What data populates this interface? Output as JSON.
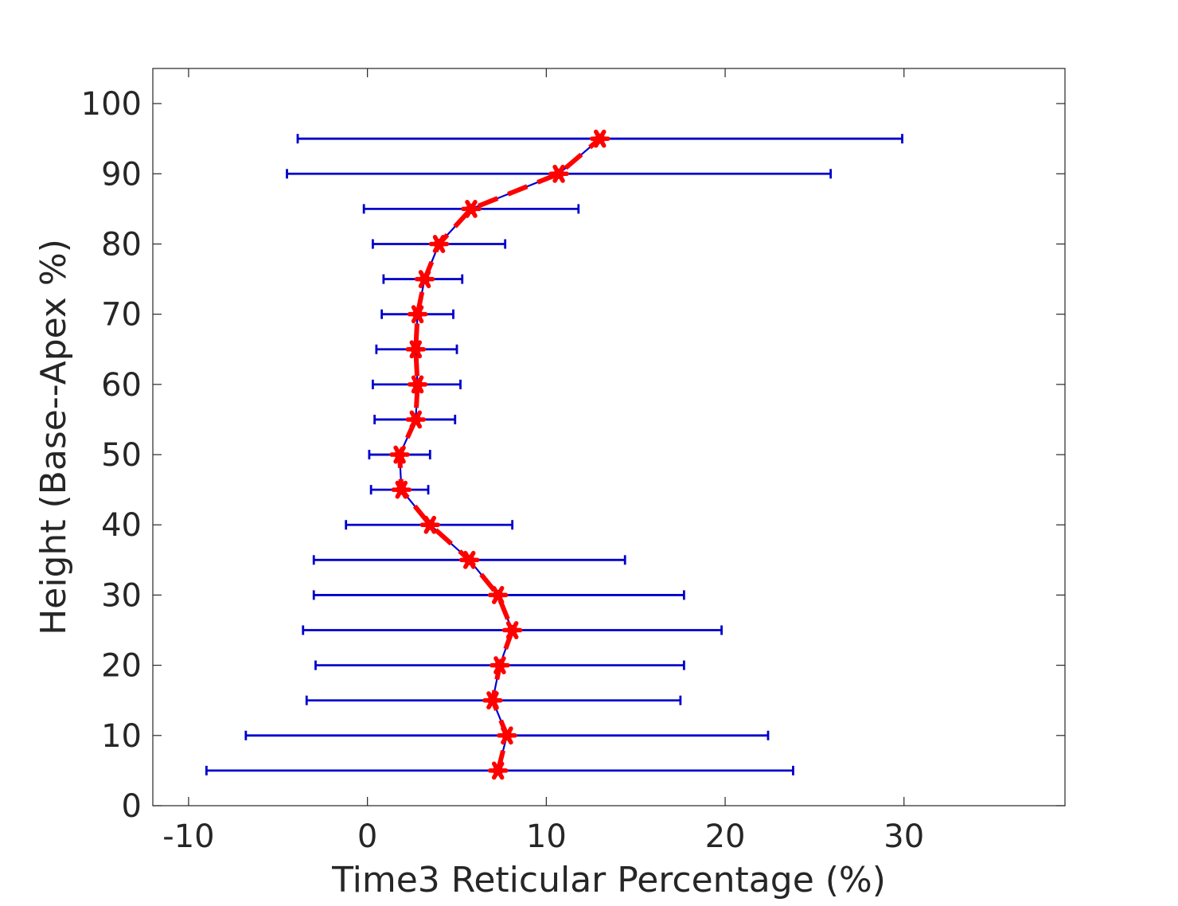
{
  "chart_data": {
    "type": "scatter",
    "title": "",
    "xlabel": "Time3 Reticular Percentage (%)",
    "ylabel": "Height (Base--Apex %)",
    "xlim": [
      -12,
      39
    ],
    "ylim": [
      0,
      105
    ],
    "xticks": [
      -10,
      0,
      10,
      20,
      30
    ],
    "yticks": [
      0,
      10,
      20,
      30,
      40,
      50,
      60,
      70,
      80,
      90,
      100
    ],
    "grid": false,
    "series": [
      {
        "x": [
          7.3,
          7.8,
          7.0,
          7.4,
          8.1,
          7.3,
          5.7,
          3.5,
          1.9,
          1.8,
          2.7,
          2.8,
          2.7,
          2.8,
          3.2,
          4.0,
          5.8,
          10.7,
          13.0
        ],
        "y": [
          5,
          10,
          15,
          20,
          25,
          30,
          35,
          40,
          45,
          50,
          55,
          60,
          65,
          70,
          75,
          80,
          85,
          90,
          95
        ],
        "x_lower": [
          -9.0,
          -6.8,
          -3.4,
          -2.9,
          -3.6,
          -3.0,
          -3.0,
          -1.2,
          0.2,
          0.1,
          0.4,
          0.3,
          0.5,
          0.8,
          0.9,
          0.3,
          -0.2,
          -4.5,
          -3.9
        ],
        "x_upper": [
          23.8,
          22.4,
          17.5,
          17.7,
          19.8,
          17.7,
          14.4,
          8.1,
          3.4,
          3.5,
          4.9,
          5.2,
          5.0,
          4.8,
          5.3,
          7.7,
          11.8,
          25.9,
          29.9
        ]
      }
    ],
    "colors": {
      "error_bar": "#0000cc",
      "marker": "#ff0000",
      "dashed_line": "#ff0000",
      "axes": "#262626"
    }
  }
}
